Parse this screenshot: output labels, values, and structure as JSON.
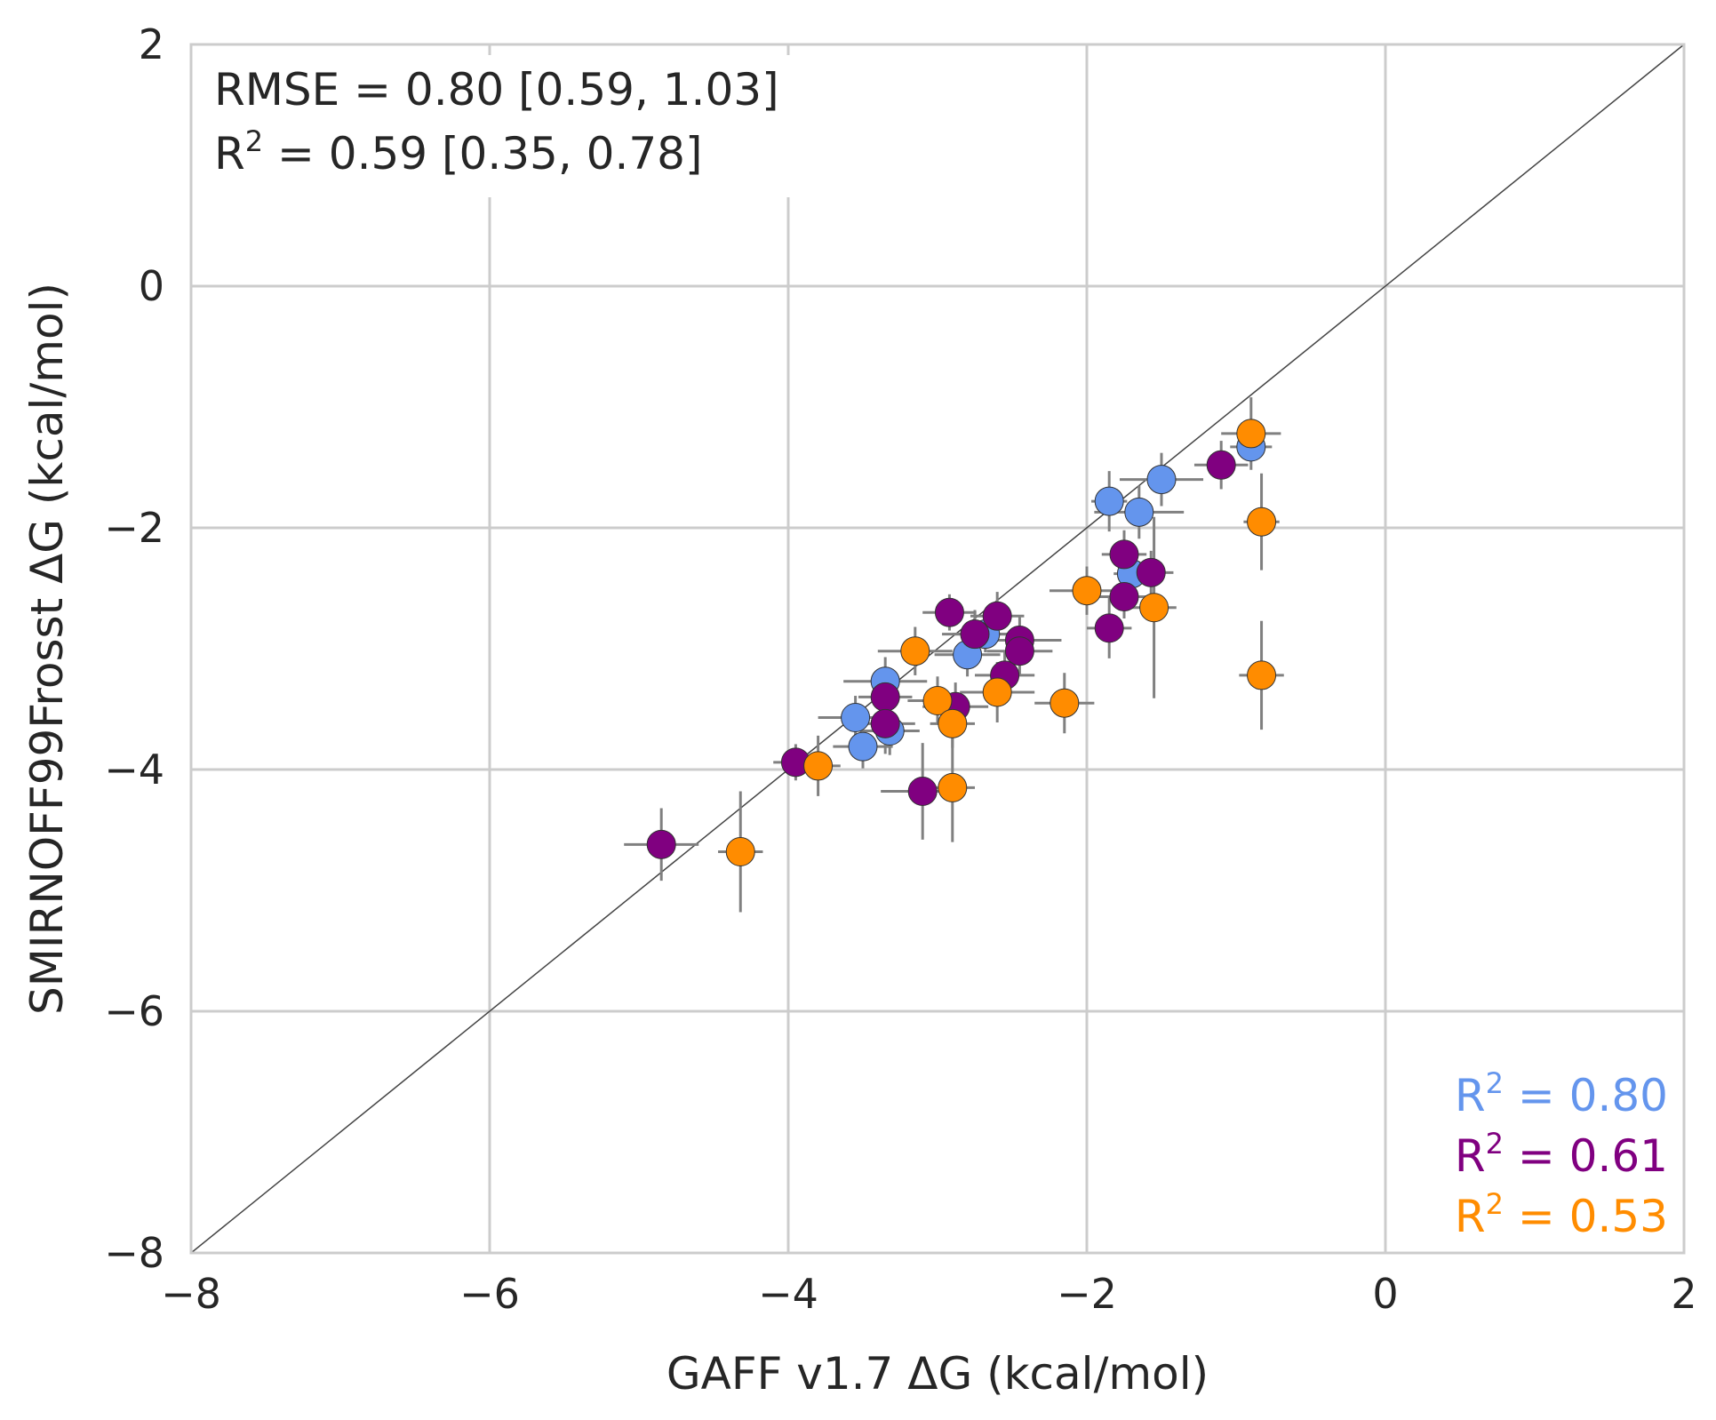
{
  "chart_data": {
    "type": "scatter",
    "xlabel": "GAFF v1.7 ΔG (kcal/mol)",
    "ylabel": "SMIRNOFF99Frosst ΔG (kcal/mol)",
    "xlim": [
      -8,
      2
    ],
    "ylim": [
      -8,
      2
    ],
    "x_ticks": [
      "−8",
      "−6",
      "−4",
      "−2",
      "0",
      "2"
    ],
    "y_ticks": [
      "−8",
      "−6",
      "−4",
      "−2",
      "0",
      "2"
    ],
    "grid": true,
    "identity_line": true,
    "annotation": {
      "rmse": "RMSE = 0.80 [0.59, 1.03]",
      "r2_prefix": "R",
      "r2_sup": "2",
      "r2_rest": " = 0.59 [0.35, 0.78]"
    },
    "legend_position": "bottom-right",
    "series": [
      {
        "color": "#6495ED",
        "label_prefix": "R",
        "label_sup": "2",
        "label_rest": " = 0.80",
        "points": [
          {
            "x": -0.9,
            "y": -1.33,
            "xerr": 0.14,
            "yerr": 0.1
          },
          {
            "x": -1.5,
            "y": -1.6,
            "xerr": 0.28,
            "yerr": 0.22
          },
          {
            "x": -1.85,
            "y": -1.78,
            "xerr": 0.12,
            "yerr": 0.25
          },
          {
            "x": -1.65,
            "y": -1.87,
            "xerr": 0.3,
            "yerr": 0.22
          },
          {
            "x": -1.7,
            "y": -2.38,
            "xerr": 0.12,
            "yerr": 0.15
          },
          {
            "x": -2.68,
            "y": -2.88,
            "xerr": 0.22,
            "yerr": 0.15
          },
          {
            "x": -2.8,
            "y": -3.05,
            "xerr": 0.22,
            "yerr": 0.18
          },
          {
            "x": -3.35,
            "y": -3.27,
            "xerr": 0.28,
            "yerr": 0.2
          },
          {
            "x": -3.55,
            "y": -3.57,
            "xerr": 0.25,
            "yerr": 0.18
          },
          {
            "x": -3.32,
            "y": -3.68,
            "xerr": 0.2,
            "yerr": 0.2
          },
          {
            "x": -3.5,
            "y": -3.81,
            "xerr": 0.2,
            "yerr": 0.18
          }
        ]
      },
      {
        "color": "#800080",
        "label_prefix": "R",
        "label_sup": "2",
        "label_rest": " = 0.61",
        "points": [
          {
            "x": -1.1,
            "y": -1.48,
            "xerr": 0.18,
            "yerr": 0.2
          },
          {
            "x": -1.75,
            "y": -2.22,
            "xerr": 0.15,
            "yerr": 0.2
          },
          {
            "x": -1.57,
            "y": -2.37,
            "xerr": 0.15,
            "yerr": 0.18
          },
          {
            "x": -1.75,
            "y": -2.57,
            "xerr": 0.2,
            "yerr": 0.18
          },
          {
            "x": -1.85,
            "y": -2.83,
            "xerr": 0.15,
            "yerr": 0.25
          },
          {
            "x": -2.92,
            "y": -2.7,
            "xerr": 0.18,
            "yerr": 0.15
          },
          {
            "x": -2.6,
            "y": -2.73,
            "xerr": 0.18,
            "yerr": 0.2
          },
          {
            "x": -2.75,
            "y": -2.88,
            "xerr": 0.22,
            "yerr": 0.2
          },
          {
            "x": -2.45,
            "y": -2.93,
            "xerr": 0.28,
            "yerr": 0.2
          },
          {
            "x": -2.45,
            "y": -3.02,
            "xerr": 0.22,
            "yerr": 0.2
          },
          {
            "x": -2.55,
            "y": -3.22,
            "xerr": 0.2,
            "yerr": 0.2
          },
          {
            "x": -3.35,
            "y": -3.4,
            "xerr": 0.18,
            "yerr": 0.2
          },
          {
            "x": -2.88,
            "y": -3.48,
            "xerr": 0.22,
            "yerr": 0.2
          },
          {
            "x": -3.35,
            "y": -3.62,
            "xerr": 0.2,
            "yerr": 0.25
          },
          {
            "x": -3.95,
            "y": -3.94,
            "xerr": 0.15,
            "yerr": 0.15
          },
          {
            "x": -3.1,
            "y": -4.18,
            "xerr": 0.28,
            "yerr": 0.4
          },
          {
            "x": -4.85,
            "y": -4.62,
            "xerr": 0.25,
            "yerr": 0.3
          }
        ]
      },
      {
        "color": "#FF8C00",
        "label_prefix": "R",
        "label_sup": "2",
        "label_rest": " = 0.53",
        "points": [
          {
            "x": -0.9,
            "y": -1.22,
            "xerr": 0.2,
            "yerr": 0.3
          },
          {
            "x": -0.83,
            "y": -1.95,
            "xerr": 0.12,
            "yerr": 0.4
          },
          {
            "x": -2.0,
            "y": -2.52,
            "xerr": 0.25,
            "yerr": 0.2
          },
          {
            "x": -1.55,
            "y": -2.66,
            "xerr": 0.15,
            "yerr": 0.75
          },
          {
            "x": -0.83,
            "y": -3.22,
            "xerr": 0.15,
            "yerr": 0.45
          },
          {
            "x": -3.15,
            "y": -3.02,
            "xerr": 0.25,
            "yerr": 0.2
          },
          {
            "x": -3.0,
            "y": -3.43,
            "xerr": 0.2,
            "yerr": 0.2
          },
          {
            "x": -2.6,
            "y": -3.36,
            "xerr": 0.25,
            "yerr": 0.25
          },
          {
            "x": -2.15,
            "y": -3.45,
            "xerr": 0.2,
            "yerr": 0.25
          },
          {
            "x": -2.9,
            "y": -3.62,
            "xerr": 0.15,
            "yerr": 0.2
          },
          {
            "x": -3.8,
            "y": -3.97,
            "xerr": 0.15,
            "yerr": 0.25
          },
          {
            "x": -2.9,
            "y": -4.15,
            "xerr": 0.15,
            "yerr": 0.45
          },
          {
            "x": -4.32,
            "y": -4.68,
            "xerr": 0.15,
            "yerr": 0.5
          }
        ]
      }
    ]
  }
}
